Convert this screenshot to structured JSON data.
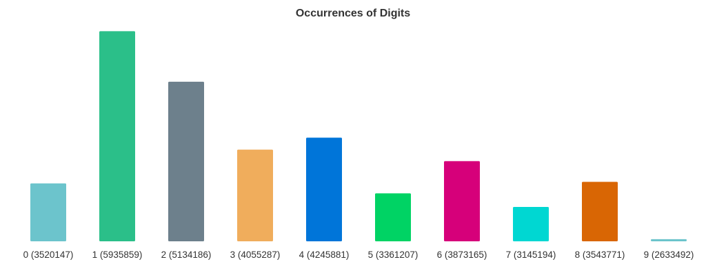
{
  "chart_data": {
    "type": "bar",
    "title": "Occurrences of Digits",
    "xlabel": "",
    "ylabel": "",
    "categories": [
      "0 (3520147)",
      "1 (5935859)",
      "2 (5134186)",
      "3 (4055287)",
      "4 (4245881)",
      "5 (3361207)",
      "6 (3873165)",
      "7 (3145194)",
      "8 (3543771)",
      "9 (2633492)"
    ],
    "values": [
      3520147,
      5935859,
      5134186,
      4055287,
      4245881,
      3361207,
      3873165,
      3145194,
      3543771,
      2633492
    ],
    "colors": [
      "#6cc4cc",
      "#2bbf89",
      "#6d808c",
      "#f0ad5c",
      "#0075d9",
      "#00d364",
      "#d6007a",
      "#00d7d2",
      "#d96604",
      "#6cc4cc"
    ],
    "ylim": [
      2600000,
      6000000
    ],
    "grid": false,
    "legend": "none"
  }
}
